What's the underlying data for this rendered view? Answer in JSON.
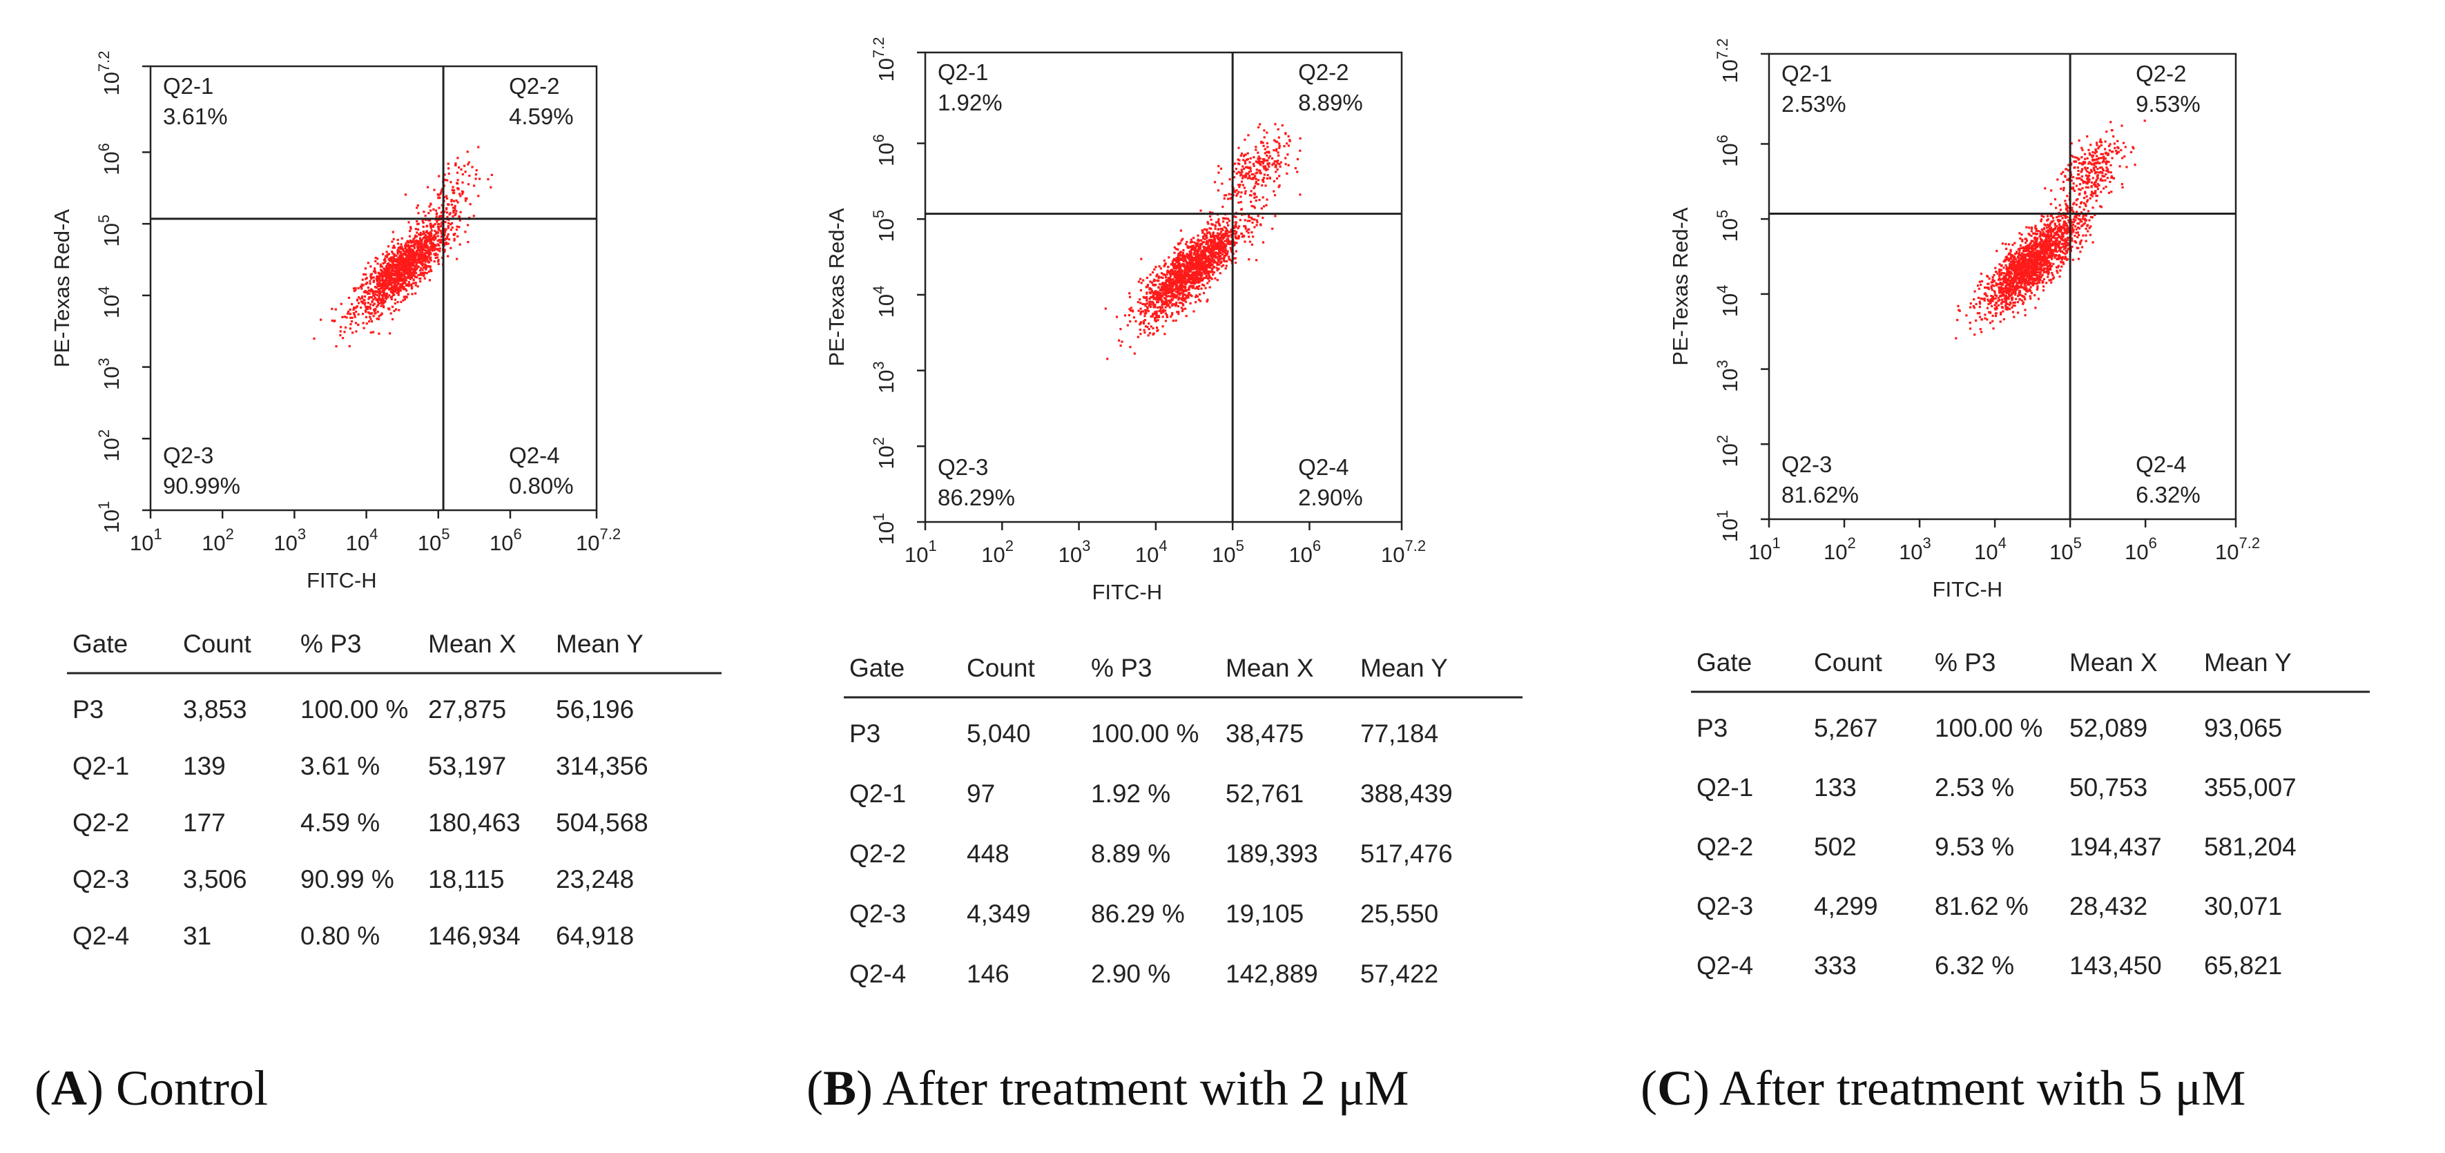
{
  "figure": {
    "axis_color": "#222222",
    "dot_color": "#ff1a1a",
    "table_headers": [
      "Gate",
      "Count",
      "% P3",
      "Mean X",
      "Mean Y"
    ]
  },
  "chart_data": [
    {
      "type": "scatter",
      "panel": "A",
      "caption_letter": "A",
      "caption_text": "Control",
      "xlabel": "FITC-H",
      "ylabel": "PE-Texas Red-A",
      "xlim": [
        1,
        7.2
      ],
      "ylim": [
        1,
        7.2
      ],
      "log_scale": true,
      "x_tick_labels": [
        {
          "base": "10",
          "exp": "1",
          "v": 1
        },
        {
          "base": "10",
          "exp": "2",
          "v": 2
        },
        {
          "base": "10",
          "exp": "3",
          "v": 3
        },
        {
          "base": "10",
          "exp": "4",
          "v": 4
        },
        {
          "base": "10",
          "exp": "5",
          "v": 5
        },
        {
          "base": "10",
          "exp": "6",
          "v": 6
        },
        {
          "base": "10",
          "exp": "7.2",
          "v": 7.2
        }
      ],
      "y_tick_labels": [
        {
          "base": "10",
          "exp": "1",
          "v": 1
        },
        {
          "base": "10",
          "exp": "2",
          "v": 2
        },
        {
          "base": "10",
          "exp": "3",
          "v": 3
        },
        {
          "base": "10",
          "exp": "4",
          "v": 4
        },
        {
          "base": "10",
          "exp": "5",
          "v": 5
        },
        {
          "base": "10",
          "exp": "6",
          "v": 6
        },
        {
          "base": "10",
          "exp": "7.2",
          "v": 7.2
        }
      ],
      "gate_x": 5.07,
      "gate_y": 5.07,
      "quadrants": [
        {
          "name": "Q2-1",
          "percent": "3.61%",
          "position": "top-left"
        },
        {
          "name": "Q2-2",
          "percent": "4.59%",
          "position": "top-right"
        },
        {
          "name": "Q2-3",
          "percent": "90.99%",
          "position": "bottom-left"
        },
        {
          "name": "Q2-4",
          "percent": "0.80%",
          "position": "bottom-right"
        }
      ],
      "main_cluster": {
        "cx": 4.5,
        "cy": 4.4,
        "count": 1500
      },
      "upper_cluster": {
        "cx": 5.1,
        "cy": 5.4,
        "count": 110
      },
      "table": [
        [
          "P3",
          "3,853",
          "100.00 %",
          "27,875",
          "56,196"
        ],
        [
          "Q2-1",
          "139",
          "3.61 %",
          "53,197",
          "314,356"
        ],
        [
          "Q2-2",
          "177",
          "4.59 %",
          "180,463",
          "504,568"
        ],
        [
          "Q2-3",
          "3,506",
          "90.99 %",
          "18,115",
          "23,248"
        ],
        [
          "Q2-4",
          "31",
          "0.80 %",
          "146,934",
          "64,918"
        ]
      ]
    },
    {
      "type": "scatter",
      "panel": "B",
      "caption_letter": "B",
      "caption_text": "After treatment with 2 μM",
      "xlabel": "FITC-H",
      "ylabel": "PE-Texas Red-A",
      "xlim": [
        1,
        7.2
      ],
      "ylim": [
        1,
        7.2
      ],
      "log_scale": true,
      "x_tick_labels": [
        {
          "base": "10",
          "exp": "1",
          "v": 1
        },
        {
          "base": "10",
          "exp": "2",
          "v": 2
        },
        {
          "base": "10",
          "exp": "3",
          "v": 3
        },
        {
          "base": "10",
          "exp": "4",
          "v": 4
        },
        {
          "base": "10",
          "exp": "5",
          "v": 5
        },
        {
          "base": "10",
          "exp": "6",
          "v": 6
        },
        {
          "base": "10",
          "exp": "7.2",
          "v": 7.2
        }
      ],
      "y_tick_labels": [
        {
          "base": "10",
          "exp": "1",
          "v": 1
        },
        {
          "base": "10",
          "exp": "2",
          "v": 2
        },
        {
          "base": "10",
          "exp": "3",
          "v": 3
        },
        {
          "base": "10",
          "exp": "4",
          "v": 4
        },
        {
          "base": "10",
          "exp": "5",
          "v": 5
        },
        {
          "base": "10",
          "exp": "6",
          "v": 6
        },
        {
          "base": "10",
          "exp": "7.2",
          "v": 7.2
        }
      ],
      "gate_x": 5.0,
      "gate_y": 5.07,
      "quadrants": [
        {
          "name": "Q2-1",
          "percent": "1.92%",
          "position": "top-left"
        },
        {
          "name": "Q2-2",
          "percent": "8.89%",
          "position": "top-right"
        },
        {
          "name": "Q2-3",
          "percent": "86.29%",
          "position": "bottom-left"
        },
        {
          "name": "Q2-4",
          "percent": "2.90%",
          "position": "bottom-right"
        }
      ],
      "main_cluster": {
        "cx": 4.45,
        "cy": 4.35,
        "count": 1700
      },
      "upper_cluster": {
        "cx": 5.3,
        "cy": 5.65,
        "count": 260
      },
      "table": [
        [
          "P3",
          "5,040",
          "100.00 %",
          "38,475",
          "77,184"
        ],
        [
          "Q2-1",
          "97",
          "1.92 %",
          "52,761",
          "388,439"
        ],
        [
          "Q2-2",
          "448",
          "8.89 %",
          "189,393",
          "517,476"
        ],
        [
          "Q2-3",
          "4,349",
          "86.29 %",
          "19,105",
          "25,550"
        ],
        [
          "Q2-4",
          "146",
          "2.90 %",
          "142,889",
          "57,422"
        ]
      ]
    },
    {
      "type": "scatter",
      "panel": "C",
      "caption_letter": "C",
      "caption_text": "After treatment with 5 μM",
      "xlabel": "FITC-H",
      "ylabel": "PE-Texas Red-A",
      "xlim": [
        1,
        7.2
      ],
      "ylim": [
        1,
        7.2
      ],
      "log_scale": true,
      "x_tick_labels": [
        {
          "base": "10",
          "exp": "1",
          "v": 1
        },
        {
          "base": "10",
          "exp": "2",
          "v": 2
        },
        {
          "base": "10",
          "exp": "3",
          "v": 3
        },
        {
          "base": "10",
          "exp": "4",
          "v": 4
        },
        {
          "base": "10",
          "exp": "5",
          "v": 5
        },
        {
          "base": "10",
          "exp": "6",
          "v": 6
        },
        {
          "base": "10",
          "exp": "7.2",
          "v": 7.2
        }
      ],
      "y_tick_labels": [
        {
          "base": "10",
          "exp": "1",
          "v": 1
        },
        {
          "base": "10",
          "exp": "2",
          "v": 2
        },
        {
          "base": "10",
          "exp": "3",
          "v": 3
        },
        {
          "base": "10",
          "exp": "4",
          "v": 4
        },
        {
          "base": "10",
          "exp": "5",
          "v": 5
        },
        {
          "base": "10",
          "exp": "6",
          "v": 6
        },
        {
          "base": "10",
          "exp": "7.2",
          "v": 7.2
        }
      ],
      "gate_x": 5.0,
      "gate_y": 5.07,
      "quadrants": [
        {
          "name": "Q2-1",
          "percent": "2.53%",
          "position": "top-left"
        },
        {
          "name": "Q2-2",
          "percent": "9.53%",
          "position": "top-right"
        },
        {
          "name": "Q2-3",
          "percent": "81.62%",
          "position": "bottom-left"
        },
        {
          "name": "Q2-4",
          "percent": "6.32%",
          "position": "bottom-right"
        }
      ],
      "main_cluster": {
        "cx": 4.5,
        "cy": 4.45,
        "count": 1750
      },
      "upper_cluster": {
        "cx": 5.25,
        "cy": 5.65,
        "count": 300
      },
      "table": [
        [
          "P3",
          "5,267",
          "100.00 %",
          "52,089",
          "93,065"
        ],
        [
          "Q2-1",
          "133",
          "2.53 %",
          "50,753",
          "355,007"
        ],
        [
          "Q2-2",
          "502",
          "9.53 %",
          "194,437",
          "581,204"
        ],
        [
          "Q2-3",
          "4,299",
          "81.62 %",
          "28,432",
          "30,071"
        ],
        [
          "Q2-4",
          "333",
          "6.32 %",
          "143,450",
          "65,821"
        ]
      ]
    }
  ]
}
